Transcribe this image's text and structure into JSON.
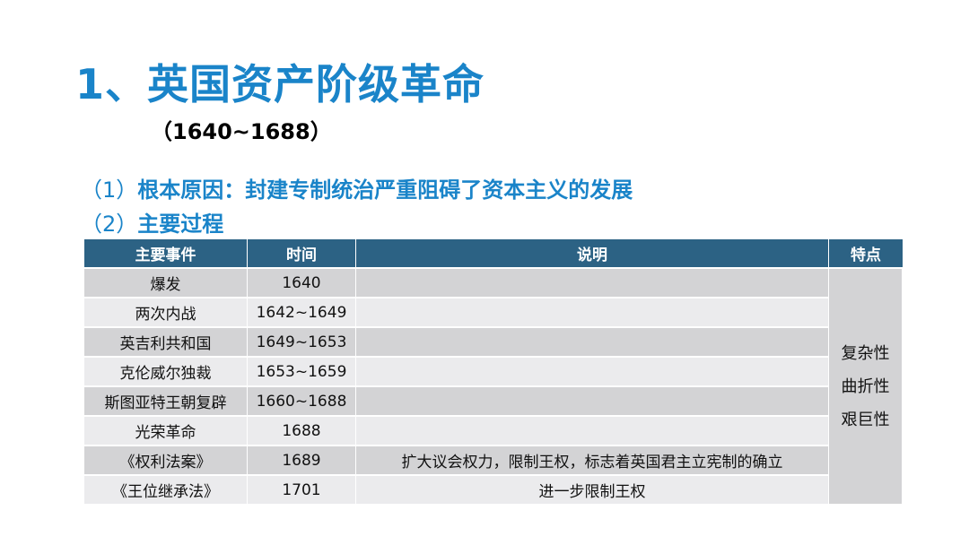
{
  "title": "1、英国资产阶级革命",
  "subtitle": "（1640~1688）",
  "points": [
    {
      "num": "（1）",
      "text": "根本原因：封建专制统治严重阻碍了资本主义的发展"
    },
    {
      "num": "（2）",
      "text": "主要过程"
    }
  ],
  "table": {
    "headers": [
      "主要事件",
      "时间",
      "说明",
      "特点"
    ],
    "rows": [
      {
        "event": "爆发",
        "time": "1640",
        "note": ""
      },
      {
        "event": "两次内战",
        "time": "1642~1649",
        "note": ""
      },
      {
        "event": "英吉利共和国",
        "time": "1649~1653",
        "note": ""
      },
      {
        "event": "克伦威尔独裁",
        "time": "1653~1659",
        "note": ""
      },
      {
        "event": "斯图亚特王朝复辟",
        "time": "1660~1688",
        "note": ""
      },
      {
        "event": "光荣革命",
        "time": "1688",
        "note": ""
      },
      {
        "event": "《权利法案》",
        "time": "1689",
        "note": "扩大议会权力，限制王权，标志着英国君主立宪制的确立"
      },
      {
        "event": "《王位继承法》",
        "time": "1701",
        "note": "进一步限制王权"
      }
    ],
    "features": [
      "复杂性",
      "曲折性",
      "艰巨性"
    ]
  }
}
